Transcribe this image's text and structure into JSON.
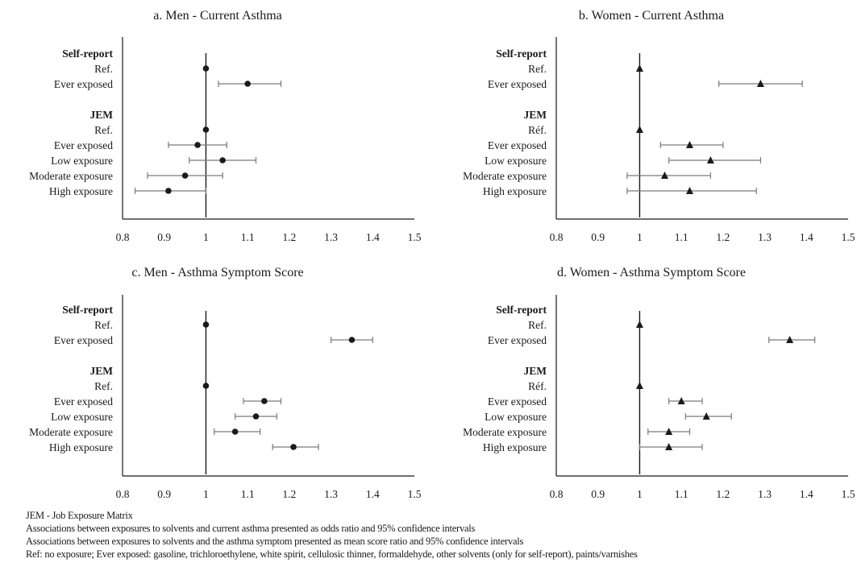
{
  "chart_data": [
    {
      "type": "forest",
      "title": "a. Men - Current Asthma",
      "marker": "circle",
      "xlim": [
        0.8,
        1.5
      ],
      "xticks": [
        "0.8",
        "0.9",
        "1",
        "1.1",
        "1.2",
        "1.3",
        "1.4",
        "1.5"
      ],
      "reference_line": 1,
      "rows": [
        {
          "label": "Self-report",
          "header": true
        },
        {
          "label": "Ref.",
          "est": 1.0
        },
        {
          "label": "Ever exposed",
          "est": 1.1,
          "lo": 1.03,
          "hi": 1.18
        },
        {
          "label": "JEM",
          "header": true,
          "gap_before": true
        },
        {
          "label": "Ref.",
          "est": 1.0
        },
        {
          "label": "Ever exposed",
          "est": 0.98,
          "lo": 0.91,
          "hi": 1.05
        },
        {
          "label": "Low exposure",
          "est": 1.04,
          "lo": 0.96,
          "hi": 1.12
        },
        {
          "label": "Moderate exposure",
          "est": 0.95,
          "lo": 0.86,
          "hi": 1.04
        },
        {
          "label": "High exposure",
          "est": 0.91,
          "lo": 0.83,
          "hi": 1.0
        }
      ]
    },
    {
      "type": "forest",
      "title": "b. Women - Current Asthma",
      "marker": "triangle",
      "xlim": [
        0.8,
        1.5
      ],
      "xticks": [
        "0.8",
        "0.9",
        "1",
        "1.1",
        "1.2",
        "1.3",
        "1.4",
        "1.5"
      ],
      "reference_line": 1,
      "rows": [
        {
          "label": "Self-report",
          "header": true
        },
        {
          "label": "Ref.",
          "est": 1.0
        },
        {
          "label": "Ever exposed",
          "est": 1.29,
          "lo": 1.19,
          "hi": 1.39
        },
        {
          "label": "JEM",
          "header": true,
          "gap_before": true
        },
        {
          "label": "Réf.",
          "est": 1.0
        },
        {
          "label": "Ever exposed",
          "est": 1.12,
          "lo": 1.05,
          "hi": 1.2
        },
        {
          "label": "Low exposure",
          "est": 1.17,
          "lo": 1.07,
          "hi": 1.29
        },
        {
          "label": "Moderate exposure",
          "est": 1.06,
          "lo": 0.97,
          "hi": 1.17
        },
        {
          "label": "High exposure",
          "est": 1.12,
          "lo": 0.97,
          "hi": 1.28
        }
      ]
    },
    {
      "type": "forest",
      "title": "c. Men - Asthma Symptom Score",
      "marker": "circle",
      "xlim": [
        0.8,
        1.5
      ],
      "xticks": [
        "0.8",
        "0.9",
        "1",
        "1.1",
        "1.2",
        "1.3",
        "1.4",
        "1.5"
      ],
      "reference_line": 1,
      "rows": [
        {
          "label": "Self-report",
          "header": true
        },
        {
          "label": "Ref.",
          "est": 1.0
        },
        {
          "label": "Ever exposed",
          "est": 1.35,
          "lo": 1.3,
          "hi": 1.4
        },
        {
          "label": "JEM",
          "header": true,
          "gap_before": true
        },
        {
          "label": "Ref.",
          "est": 1.0
        },
        {
          "label": "Ever exposed",
          "est": 1.14,
          "lo": 1.09,
          "hi": 1.18
        },
        {
          "label": "Low exposure",
          "est": 1.12,
          "lo": 1.07,
          "hi": 1.17
        },
        {
          "label": "Moderate exposure",
          "est": 1.07,
          "lo": 1.02,
          "hi": 1.13
        },
        {
          "label": "High exposure",
          "est": 1.21,
          "lo": 1.16,
          "hi": 1.27
        }
      ]
    },
    {
      "type": "forest",
      "title": "d. Women - Asthma Symptom Score",
      "marker": "triangle",
      "xlim": [
        0.8,
        1.5
      ],
      "xticks": [
        "0.8",
        "0.9",
        "1",
        "1.1",
        "1.2",
        "1.3",
        "1.4",
        "1.5"
      ],
      "reference_line": 1,
      "rows": [
        {
          "label": "Self-report",
          "header": true
        },
        {
          "label": "Ref.",
          "est": 1.0
        },
        {
          "label": "Ever exposed",
          "est": 1.36,
          "lo": 1.31,
          "hi": 1.42
        },
        {
          "label": "JEM",
          "header": true,
          "gap_before": true
        },
        {
          "label": "Réf.",
          "est": 1.0
        },
        {
          "label": "Ever exposed",
          "est": 1.1,
          "lo": 1.07,
          "hi": 1.15
        },
        {
          "label": "Low exposure",
          "est": 1.16,
          "lo": 1.11,
          "hi": 1.22
        },
        {
          "label": "Moderate exposure",
          "est": 1.07,
          "lo": 1.02,
          "hi": 1.12
        },
        {
          "label": "High exposure",
          "est": 1.07,
          "lo": 1.0,
          "hi": 1.15
        }
      ]
    }
  ],
  "footnotes": {
    "jem": "JEM - Job Exposure Matrix",
    "line1": "Associations between exposures to solvents and current asthma presented as odds ratio and 95% confidence intervals",
    "line2": "Associations between exposures to solvents and the asthma symptom presented as mean score ratio and 95% confidence intervals",
    "line3": "Ref: no exposure; Ever exposed: gasoline, trichloroethylene, white spirit, cellulosic thinner, formaldehyde, other solvents (only for self-report), paints/varnishes"
  },
  "colors": {
    "ink": "#1a1a1a",
    "whisker": "#7a7a7a",
    "axis": "#1a1a1a"
  }
}
